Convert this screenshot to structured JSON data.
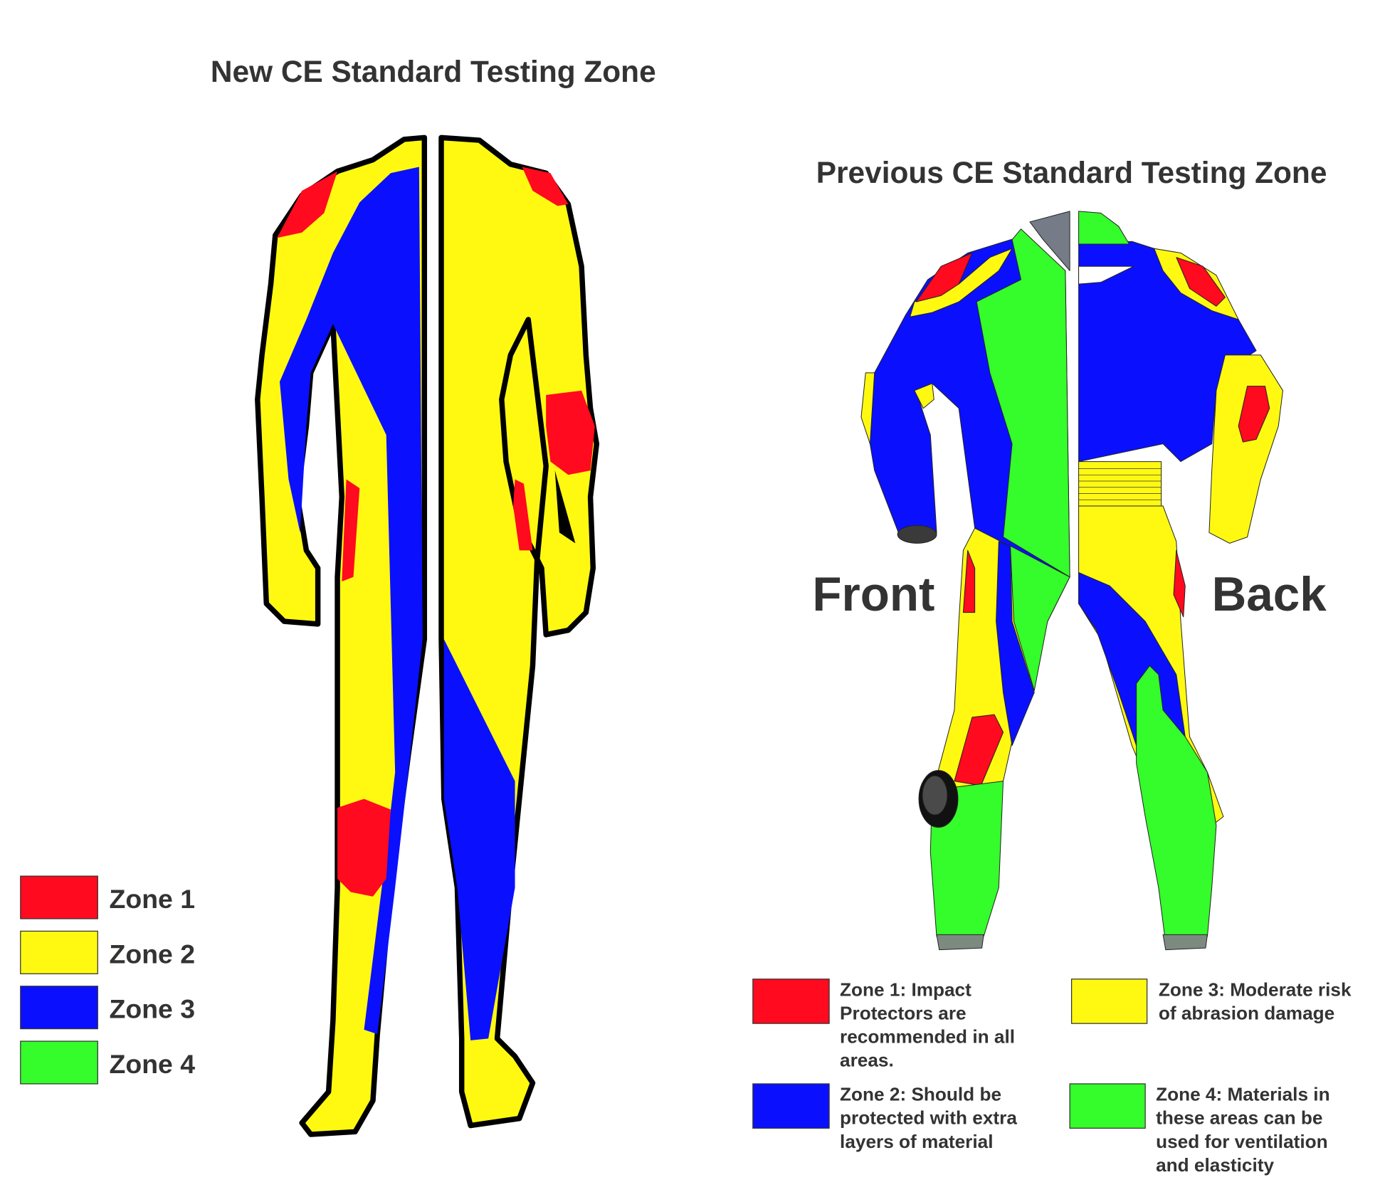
{
  "colors": {
    "zone1": "#ff0a1e",
    "zone2_new": "#fff912",
    "zone3_new": "#0a10fd",
    "zone4": "#35fc2b",
    "text": "#333333"
  },
  "new_standard": {
    "title": "New CE Standard Testing Zone",
    "legend": [
      {
        "label": "Zone 1",
        "color": "#ff0a1e"
      },
      {
        "label": "Zone 2",
        "color": "#fff912"
      },
      {
        "label": "Zone 3",
        "color": "#0a10fd"
      },
      {
        "label": "Zone 4",
        "color": "#35fc2b"
      }
    ]
  },
  "previous_standard": {
    "title": "Previous CE Standard Testing Zone",
    "front_label": "Front",
    "back_label": "Back",
    "legend": [
      {
        "color": "#ff0a1e",
        "lines": [
          "Zone 1: Impact",
          "Protectors are",
          "recommended in all",
          "areas."
        ]
      },
      {
        "color": "#0a10fd",
        "lines": [
          "Zone 2: Should be",
          "protected with extra",
          "layers of material"
        ]
      },
      {
        "color": "#fff912",
        "lines": [
          "Zone 3: Moderate risk",
          "of abrasion damage"
        ]
      },
      {
        "color": "#35fc2b",
        "lines": [
          "Zone 4: Materials in",
          "these areas can be",
          "used for ventilation",
          "and elasticity"
        ]
      }
    ]
  }
}
